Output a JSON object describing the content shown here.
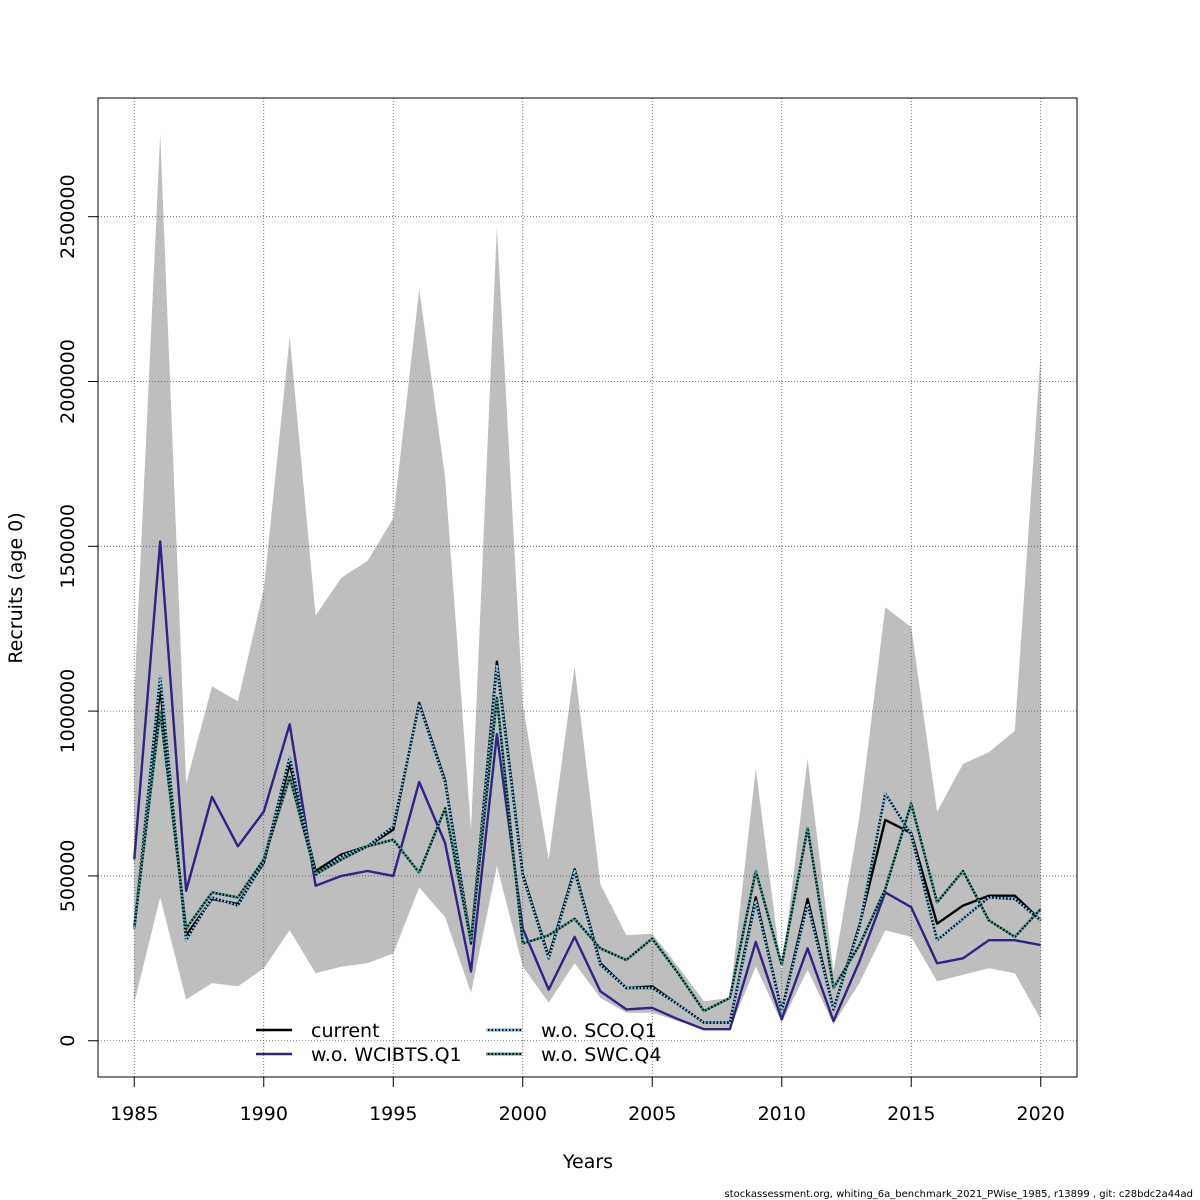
{
  "chart_data": {
    "type": "line",
    "xlabel": "Years",
    "ylabel": "Recruits (age 0)",
    "xlim": [
      1983.6,
      2021.4
    ],
    "ylim": [
      -110000,
      2860000
    ],
    "x_ticks": [
      1985,
      1990,
      1995,
      2000,
      2005,
      2010,
      2015,
      2020
    ],
    "x_tick_labels": [
      "1985",
      "1990",
      "1995",
      "2000",
      "2005",
      "2010",
      "2015",
      "2020"
    ],
    "y_ticks": [
      0,
      500000,
      1000000,
      1500000,
      2000000,
      2500000
    ],
    "y_tick_labels": [
      "0",
      "500000",
      "1000000",
      "1500000",
      "2000000",
      "2500000"
    ],
    "grid": true,
    "legend_position": "bottom-left",
    "band_color": "#bebebe",
    "x": [
      1985,
      1986,
      1987,
      1988,
      1989,
      1990,
      1991,
      1992,
      1993,
      1994,
      1995,
      1996,
      1997,
      1998,
      1999,
      2000,
      2001,
      2002,
      2003,
      2004,
      2005,
      2006,
      2007,
      2008,
      2009,
      2010,
      2011,
      2012,
      2013,
      2014,
      2015,
      2016,
      2017,
      2018,
      2019,
      2020
    ],
    "band_upper": [
      1050000,
      2750000,
      780000,
      1075000,
      1030000,
      1370000,
      2135000,
      1290000,
      1405000,
      1455000,
      1585000,
      2280000,
      1710000,
      640000,
      2470000,
      1020000,
      550000,
      1135000,
      475000,
      320000,
      325000,
      225000,
      120000,
      130000,
      825000,
      210000,
      855000,
      210000,
      680000,
      1315000,
      1255000,
      695000,
      840000,
      875000,
      940000,
      2085000
    ],
    "band_lower": [
      115000,
      435000,
      125000,
      175000,
      165000,
      220000,
      335000,
      205000,
      225000,
      235000,
      265000,
      465000,
      375000,
      145000,
      530000,
      225000,
      115000,
      235000,
      130000,
      85000,
      85000,
      60000,
      35000,
      35000,
      225000,
      55000,
      215000,
      50000,
      175000,
      335000,
      315000,
      180000,
      200000,
      220000,
      205000,
      65000
    ],
    "series": [
      {
        "name": "current",
        "color": "#000000",
        "dash": "solid",
        "values": [
          340000,
          1070000,
          320000,
          430000,
          415000,
          540000,
          840000,
          515000,
          565000,
          590000,
          640000,
          1025000,
          790000,
          300000,
          1150000,
          505000,
          255000,
          520000,
          235000,
          160000,
          165000,
          110000,
          55000,
          55000,
          435000,
          90000,
          430000,
          95000,
          350000,
          670000,
          630000,
          355000,
          410000,
          440000,
          440000,
          365000
        ]
      },
      {
        "name": "w.o. WCIBTS.Q1",
        "color": "#2f2383",
        "dash": "solid",
        "values": [
          550000,
          1515000,
          455000,
          740000,
          590000,
          695000,
          960000,
          470000,
          500000,
          515000,
          500000,
          785000,
          600000,
          210000,
          930000,
          340000,
          155000,
          315000,
          150000,
          95000,
          100000,
          65000,
          35000,
          35000,
          300000,
          65000,
          280000,
          60000,
          240000,
          450000,
          405000,
          235000,
          250000,
          305000,
          305000,
          290000
        ]
      },
      {
        "name": "w.o. SCO.Q1",
        "color": "#7dc5f0",
        "dash": "dotted",
        "values": [
          340000,
          1105000,
          305000,
          435000,
          410000,
          545000,
          860000,
          505000,
          560000,
          590000,
          650000,
          1020000,
          785000,
          295000,
          1140000,
          500000,
          250000,
          515000,
          230000,
          160000,
          160000,
          110000,
          55000,
          55000,
          425000,
          90000,
          415000,
          95000,
          345000,
          750000,
          625000,
          305000,
          370000,
          435000,
          430000,
          365000
        ]
      },
      {
        "name": "w.o. SWC.Q4",
        "color": "#3ea39b",
        "dash": "dotted",
        "values": [
          345000,
          1000000,
          340000,
          450000,
          435000,
          550000,
          800000,
          505000,
          550000,
          590000,
          610000,
          510000,
          705000,
          300000,
          1040000,
          295000,
          320000,
          370000,
          280000,
          245000,
          310000,
          205000,
          90000,
          130000,
          515000,
          230000,
          645000,
          160000,
          290000,
          460000,
          720000,
          420000,
          515000,
          365000,
          315000,
          400000
        ]
      }
    ]
  },
  "footer_text": "stockassessment.org, whiting_6a_benchmark_2021_PWise_1985, r13899 , git: c28bdc2a44ad"
}
